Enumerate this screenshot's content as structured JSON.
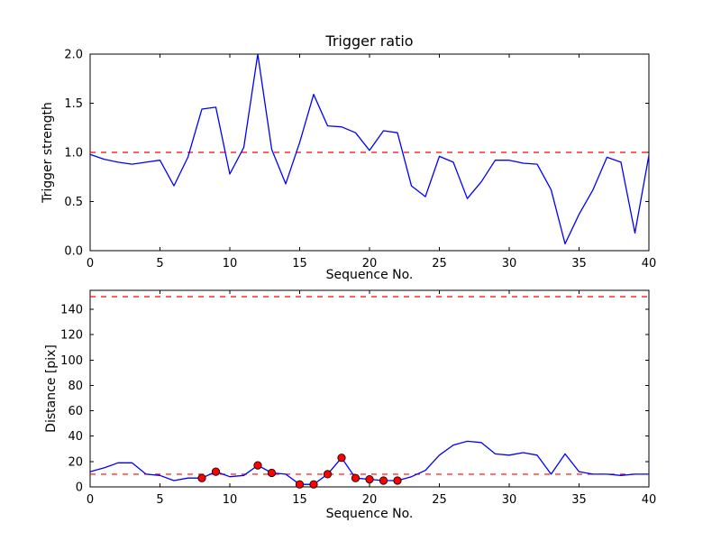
{
  "figure": {
    "background": "#ffffff",
    "frame_color": "#000000",
    "text_color": "#000000"
  },
  "chart_data": [
    {
      "name": "trigger-ratio",
      "type": "line",
      "title": "Trigger ratio",
      "xlabel": "Sequence No.",
      "ylabel": "Trigger strength",
      "xlim": [
        0,
        40
      ],
      "ylim": [
        0.0,
        2.0
      ],
      "xticks": [
        0,
        5,
        10,
        15,
        20,
        25,
        30,
        35,
        40
      ],
      "xtick_labels": [
        "0",
        "5",
        "10",
        "15",
        "20",
        "25",
        "30",
        "35",
        "40"
      ],
      "yticks": [
        0.0,
        0.5,
        1.0,
        1.5,
        2.0
      ],
      "ytick_labels": [
        "0.0",
        "0.5",
        "1.0",
        "1.5",
        "2.0"
      ],
      "grid": false,
      "legend": "none",
      "line_color": "#0000ff",
      "thresholds": [
        {
          "y": 1.0,
          "color": "#ff0000",
          "style": "dashed"
        }
      ],
      "x": [
        0,
        1,
        2,
        3,
        4,
        5,
        6,
        7,
        8,
        9,
        10,
        11,
        12,
        13,
        14,
        15,
        16,
        17,
        18,
        19,
        20,
        21,
        22,
        23,
        24,
        25,
        26,
        27,
        28,
        29,
        30,
        31,
        32,
        33,
        34,
        35,
        36,
        37,
        38,
        39,
        40
      ],
      "y": [
        0.98,
        0.93,
        0.9,
        0.88,
        0.9,
        0.92,
        0.66,
        0.95,
        1.44,
        1.46,
        0.78,
        1.05,
        2.0,
        1.03,
        0.68,
        1.1,
        1.59,
        1.27,
        1.26,
        1.2,
        1.02,
        1.22,
        1.2,
        0.66,
        0.55,
        0.96,
        0.9,
        0.53,
        0.7,
        0.92,
        0.92,
        0.89,
        0.88,
        0.62,
        0.07,
        0.37,
        0.62,
        0.95,
        0.9,
        0.18,
        0.97
      ]
    },
    {
      "name": "distance",
      "type": "line",
      "title": "",
      "xlabel": "Sequence No.",
      "ylabel": "Distance [pix]",
      "xlim": [
        0,
        40
      ],
      "ylim": [
        0,
        155
      ],
      "xticks": [
        0,
        5,
        10,
        15,
        20,
        25,
        30,
        35,
        40
      ],
      "xtick_labels": [
        "0",
        "5",
        "10",
        "15",
        "20",
        "25",
        "30",
        "35",
        "40"
      ],
      "yticks": [
        0,
        20,
        40,
        60,
        80,
        100,
        120,
        140
      ],
      "ytick_labels": [
        "0",
        "20",
        "40",
        "60",
        "80",
        "100",
        "120",
        "140"
      ],
      "grid": false,
      "legend": "none",
      "line_color": "#0000ff",
      "thresholds": [
        {
          "y": 150,
          "color": "#ff0000",
          "style": "dashed"
        },
        {
          "y": 10,
          "color": "#ff0000",
          "style": "dashed"
        }
      ],
      "x": [
        0,
        1,
        2,
        3,
        4,
        5,
        6,
        7,
        8,
        9,
        10,
        11,
        12,
        13,
        14,
        15,
        16,
        17,
        18,
        19,
        20,
        21,
        22,
        23,
        24,
        25,
        26,
        27,
        28,
        29,
        30,
        31,
        32,
        33,
        34,
        35,
        36,
        37,
        38,
        39,
        40
      ],
      "y": [
        12,
        15,
        19,
        19,
        10,
        9,
        5,
        7,
        7,
        12,
        8,
        9,
        17,
        11,
        10,
        2,
        2,
        10,
        23,
        7,
        6,
        5,
        5,
        8,
        13,
        25,
        33,
        36,
        35,
        26,
        25,
        27,
        25,
        10,
        26,
        12,
        10,
        10,
        9,
        10,
        10
      ],
      "markers": {
        "color": "#ff0000",
        "edge_color": "#000000",
        "points": [
          {
            "x": 8,
            "y": 7
          },
          {
            "x": 9,
            "y": 12
          },
          {
            "x": 12,
            "y": 17
          },
          {
            "x": 13,
            "y": 11
          },
          {
            "x": 15,
            "y": 2
          },
          {
            "x": 16,
            "y": 2
          },
          {
            "x": 17,
            "y": 10
          },
          {
            "x": 18,
            "y": 23
          },
          {
            "x": 19,
            "y": 7
          },
          {
            "x": 20,
            "y": 6
          },
          {
            "x": 21,
            "y": 5
          },
          {
            "x": 22,
            "y": 5
          }
        ]
      }
    }
  ]
}
